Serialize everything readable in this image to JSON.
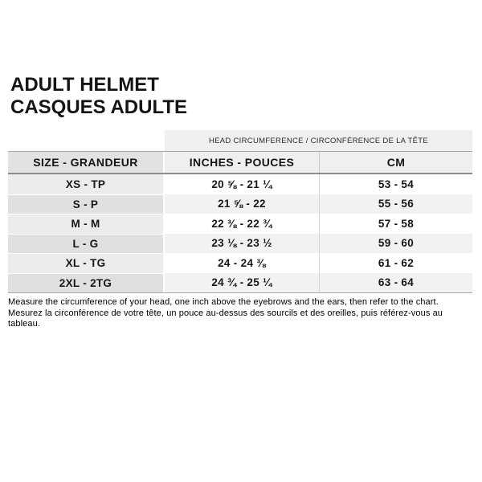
{
  "page": {
    "title_line1": "ADULT HELMET",
    "title_line2": "CASQUES ADULTE"
  },
  "chart_data": {
    "type": "table",
    "title": "ADULT HELMET / CASQUES ADULTE",
    "banner": "HEAD CIRCUMFERENCE / CIRCONFÉRENCE DE LA TÊTE",
    "columns": [
      "SIZE - GRANDEUR",
      "INCHES - POUCES",
      "CM"
    ],
    "rows": [
      [
        "XS - TP",
        "20 ⅝ - 21 ¼",
        "53 - 54"
      ],
      [
        "S - P",
        "21 ⅝ - 22",
        "55 - 56"
      ],
      [
        "M - M",
        "22 ⅜ - 22 ¾",
        "57 - 58"
      ],
      [
        "L - G",
        "23 ⅛ - 23 ½",
        "59 - 60"
      ],
      [
        "XL - TG",
        "24 - 24 ⅜",
        "61 - 62"
      ],
      [
        "2XL - 2TG",
        "24 ¾ - 25 ¼",
        "63 - 64"
      ]
    ]
  },
  "footer": {
    "line_en": "Measure the circumference of your head, one inch above the eyebrows and the ears, then refer to the chart.",
    "line_fr": "Mesurez la circonférence de votre tête, un pouce au-dessus des sourcils et des oreilles, puis référez-vous au tableau."
  }
}
